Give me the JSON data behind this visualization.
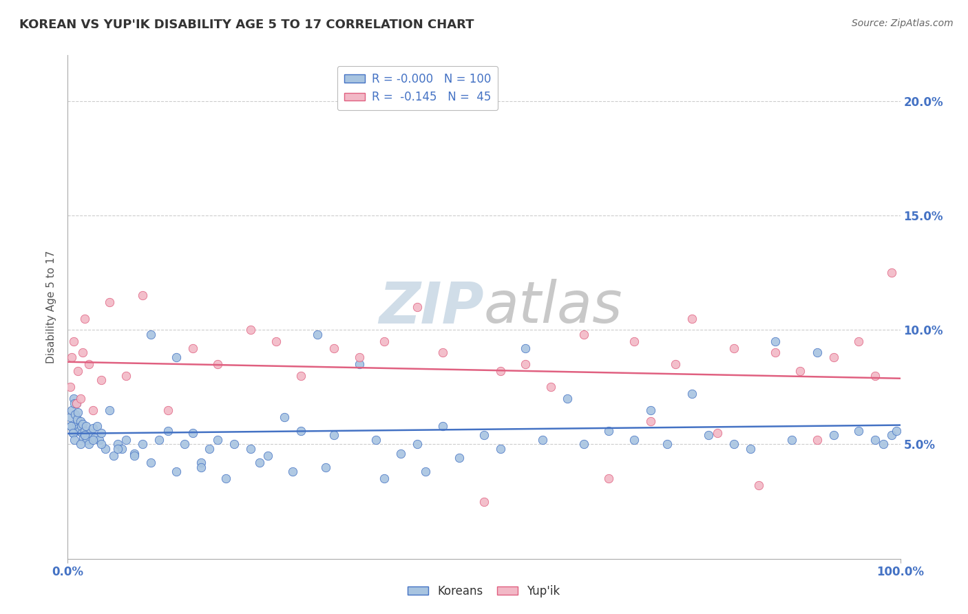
{
  "title": "KOREAN VS YUP'IK DISABILITY AGE 5 TO 17 CORRELATION CHART",
  "source": "Source: ZipAtlas.com",
  "ylabel": "Disability Age 5 to 17",
  "xlim": [
    0,
    100
  ],
  "ylim": [
    0,
    22
  ],
  "yticks": [
    5,
    10,
    15,
    20
  ],
  "ytick_labels": [
    "5.0%",
    "10.0%",
    "15.0%",
    "20.0%"
  ],
  "xtick_labels": [
    "0.0%",
    "100.0%"
  ],
  "legend_labels": [
    "Koreans",
    "Yup'ik"
  ],
  "korean_color": "#a8c4e0",
  "yupik_color": "#f2b8c6",
  "korean_line_color": "#4472c4",
  "yupik_line_color": "#e06080",
  "korean_R": -0.0,
  "korean_N": 100,
  "yupik_R": -0.145,
  "yupik_N": 45,
  "title_color": "#333333",
  "watermark_color": "#d0dde8",
  "background_color": "#ffffff",
  "korean_x": [
    0.3,
    0.4,
    0.5,
    0.6,
    0.7,
    0.8,
    0.9,
    1.0,
    1.1,
    1.2,
    1.3,
    1.4,
    1.5,
    1.6,
    1.7,
    1.8,
    1.9,
    2.0,
    2.1,
    2.2,
    2.3,
    2.5,
    2.7,
    3.0,
    3.2,
    3.5,
    3.8,
    4.0,
    4.5,
    5.0,
    5.5,
    6.0,
    6.5,
    7.0,
    8.0,
    9.0,
    10.0,
    11.0,
    12.0,
    13.0,
    14.0,
    15.0,
    16.0,
    17.0,
    18.0,
    20.0,
    22.0,
    24.0,
    26.0,
    28.0,
    30.0,
    32.0,
    35.0,
    37.0,
    40.0,
    42.0,
    45.0,
    47.0,
    50.0,
    52.0,
    55.0,
    57.0,
    60.0,
    62.0,
    65.0,
    68.0,
    70.0,
    72.0,
    75.0,
    77.0,
    80.0,
    82.0,
    85.0,
    87.0,
    90.0,
    92.0,
    95.0,
    97.0,
    98.0,
    99.0,
    99.5,
    0.4,
    0.6,
    0.8,
    1.0,
    1.5,
    2.0,
    3.0,
    4.0,
    6.0,
    8.0,
    10.0,
    13.0,
    16.0,
    19.0,
    23.0,
    27.0,
    31.0,
    38.0,
    43.0
  ],
  "korean_y": [
    6.2,
    5.8,
    6.5,
    5.5,
    7.0,
    6.8,
    6.3,
    5.9,
    6.1,
    6.4,
    5.7,
    5.6,
    6.0,
    5.8,
    5.5,
    5.9,
    5.3,
    5.6,
    5.4,
    5.8,
    5.2,
    5.0,
    5.5,
    5.7,
    5.3,
    5.8,
    5.2,
    5.5,
    4.8,
    6.5,
    4.5,
    5.0,
    4.8,
    5.2,
    4.6,
    5.0,
    9.8,
    5.2,
    5.6,
    8.8,
    5.0,
    5.5,
    4.2,
    4.8,
    5.2,
    5.0,
    4.8,
    4.5,
    6.2,
    5.6,
    9.8,
    5.4,
    8.5,
    5.2,
    4.6,
    5.0,
    5.8,
    4.4,
    5.4,
    4.8,
    9.2,
    5.2,
    7.0,
    5.0,
    5.6,
    5.2,
    6.5,
    5.0,
    7.2,
    5.4,
    5.0,
    4.8,
    9.5,
    5.2,
    9.0,
    5.4,
    5.6,
    5.2,
    5.0,
    5.4,
    5.6,
    5.8,
    5.5,
    5.2,
    6.8,
    5.0,
    5.4,
    5.2,
    5.0,
    4.8,
    4.5,
    4.2,
    3.8,
    4.0,
    3.5,
    4.2,
    3.8,
    4.0,
    3.5,
    3.8
  ],
  "yupik_x": [
    0.3,
    0.5,
    0.7,
    1.0,
    1.2,
    1.5,
    1.8,
    2.0,
    2.5,
    3.0,
    4.0,
    5.0,
    7.0,
    9.0,
    12.0,
    15.0,
    18.0,
    22.0,
    25.0,
    28.0,
    32.0,
    35.0,
    38.0,
    42.0,
    45.0,
    50.0,
    52.0,
    55.0,
    58.0,
    62.0,
    65.0,
    68.0,
    70.0,
    73.0,
    75.0,
    78.0,
    80.0,
    83.0,
    85.0,
    88.0,
    90.0,
    92.0,
    95.0,
    97.0,
    99.0
  ],
  "yupik_y": [
    7.5,
    8.8,
    9.5,
    6.8,
    8.2,
    7.0,
    9.0,
    10.5,
    8.5,
    6.5,
    7.8,
    11.2,
    8.0,
    11.5,
    6.5,
    9.2,
    8.5,
    10.0,
    9.5,
    8.0,
    9.2,
    8.8,
    9.5,
    11.0,
    9.0,
    2.5,
    8.2,
    8.5,
    7.5,
    9.8,
    3.5,
    9.5,
    6.0,
    8.5,
    10.5,
    5.5,
    9.2,
    3.2,
    9.0,
    8.2,
    5.2,
    8.8,
    9.5,
    8.0,
    12.5
  ]
}
